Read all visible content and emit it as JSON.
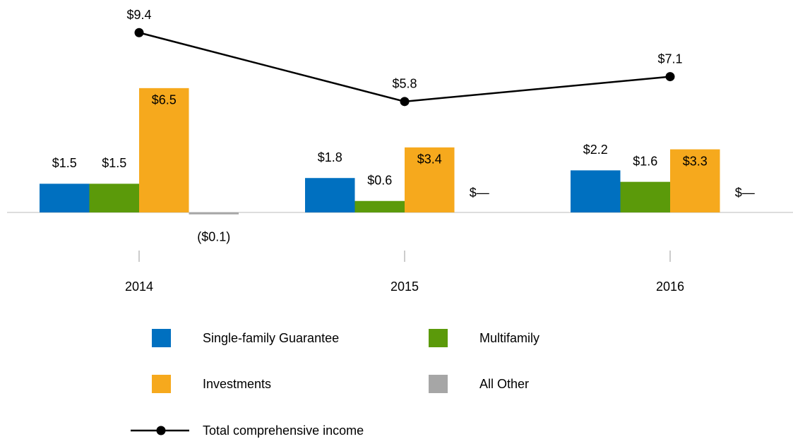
{
  "chart_data": {
    "type": "bar",
    "categories": [
      "2014",
      "2015",
      "2016"
    ],
    "series": [
      {
        "name": "Single-family Guarantee",
        "color": "#0070c0",
        "values": [
          1.5,
          1.8,
          2.2
        ],
        "value_labels": [
          "$1.5",
          "$1.8",
          "$2.2"
        ]
      },
      {
        "name": "Multifamily",
        "color": "#5b9a0a",
        "values": [
          1.5,
          0.6,
          1.6
        ],
        "value_labels": [
          "$1.5",
          "$0.6",
          "$1.6"
        ]
      },
      {
        "name": "Investments",
        "color": "#f6a91d",
        "values": [
          6.5,
          3.4,
          3.3
        ],
        "value_labels": [
          "$6.5",
          "$3.4",
          "$3.3"
        ]
      },
      {
        "name": "All Other",
        "color": "#a6a6a6",
        "values": [
          -0.1,
          0,
          0
        ],
        "value_labels": [
          "($0.1)",
          "$—",
          "$—"
        ]
      },
      {
        "name": "Total comprehensive income",
        "type": "line",
        "color": "#000000",
        "values": [
          9.4,
          5.8,
          7.1
        ],
        "value_labels": [
          "$9.4",
          "$5.8",
          "$7.1"
        ]
      }
    ],
    "grid": false
  }
}
